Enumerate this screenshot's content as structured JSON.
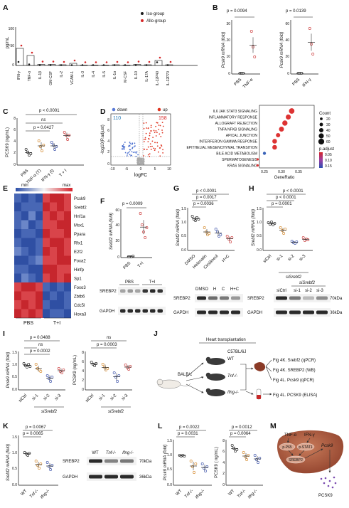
{
  "panels": {
    "A": {
      "letter": "A",
      "ylabel": "pg/mL",
      "ticks": [
        "100",
        "50",
        "0"
      ],
      "legend": [
        "Iso-group",
        "Allo-group"
      ],
      "legend_colors": [
        "#1a1a1a",
        "#d62728"
      ]
    },
    "B": {
      "letter": "B",
      "p1": "p = 0.0094",
      "p2": "p = 0.0139",
      "ylabel1": "Pcsk9 mRNA (fold)",
      "ylabel2": "Pcsk9 mRNA (fold)",
      "x1": [
        "PBS",
        "TNF-α"
      ],
      "x2": [
        "PBS",
        "IFN-γ"
      ],
      "ticks1": [
        "30",
        "20",
        "10",
        "0"
      ],
      "ticks2": [
        "60",
        "40",
        "20",
        "0"
      ]
    },
    "C": {
      "letter": "C",
      "p_top": "p < 0.0001",
      "ns": "ns",
      "p_mid": "p = 0.0427",
      "ylabel": "PCSK9 (ng/mL)",
      "ticks": [
        "8",
        "6",
        "4",
        "2",
        "0"
      ],
      "x": [
        "PBS",
        "TNF-α (T)",
        "IFN-γ (I)",
        "T + I"
      ]
    },
    "D": {
      "letter": "D",
      "legend_down": "down",
      "legend_up": "up",
      "count_down": "110",
      "count_up": "158",
      "ylabel": "-log10(P.adjust)",
      "xlabel": "logFC",
      "xticks": [
        "-10",
        "-5",
        "0",
        "5",
        "10"
      ],
      "yticks": [
        "8",
        "6",
        "4",
        "2",
        "0"
      ],
      "pathways": [
        "IL6 JAK STAT3 SIGNALING",
        "INFLAMMATORY RESPONSE",
        "ALLOGRAFT REJECTION",
        "TNFA NFKB SIGNALING",
        "APICAL JUNCTION",
        "INTERFERON GAMMA RESPONSE",
        "EPITHELIAL MESENCHYMAL TRANSITION",
        "BILE ACID METABOLISM",
        "SPERMATOGENESIS",
        "KRAS SIGNALING"
      ],
      "gene_ratio": [
        0.33,
        0.32,
        0.31,
        0.3,
        0.29,
        0.28,
        0.28,
        0.25,
        0.23,
        0.23
      ],
      "dot_count": [
        55,
        50,
        52,
        48,
        40,
        45,
        45,
        25,
        15,
        15
      ],
      "dot_color": [
        "#dd3333",
        "#dd3333",
        "#dd3333",
        "#dd3333",
        "#dd3333",
        "#dd3333",
        "#dd3333",
        "#3a63b8",
        "#dd3333",
        "#dd3333"
      ],
      "xlabel_dot": "GeneRatio",
      "xticks_dot": [
        "0.25",
        "0.30",
        "0.35"
      ],
      "count_title": "Count",
      "count_vals": [
        "20",
        "30",
        "40",
        "50",
        "60"
      ],
      "padj_title": "p.adjust",
      "padj_vals": [
        "0.05",
        "0.10",
        "0.15"
      ]
    },
    "E": {
      "letter": "E",
      "min": "min",
      "max": "max",
      "genes": [
        "Pcsk9",
        "Srebf2",
        "Hnf1a",
        "Msx1",
        "Ppara",
        "Rfx1",
        "E2f2",
        "Foxa2",
        "Hinfp",
        "Sp1",
        "Foxo3",
        "Zbtb6",
        "Cdc5l",
        "Hoxa3"
      ],
      "gene_colors": [
        "#d62728",
        "#1f77b4",
        "#111",
        "#111",
        "#111",
        "#111",
        "#111",
        "#111",
        "#111",
        "#111",
        "#111",
        "#111",
        "#111",
        "#111"
      ],
      "groups": [
        "PBS",
        "T+I"
      ]
    },
    "F": {
      "letter": "F",
      "p": "p = 0.0009",
      "ylabel": "Srebf2 mRNA (fold)",
      "ticks": [
        "60",
        "40",
        "20",
        "0"
      ],
      "x": [
        "PBS",
        "T+I"
      ],
      "blot_groups": [
        "PBS",
        "T+I"
      ],
      "blot_labels": [
        "SREBP2",
        "GAPDH"
      ]
    },
    "G": {
      "letter": "G",
      "p1": "p < 0.0001",
      "p2": "p = 0.0017",
      "p3": "p = 0.0036",
      "ylabel": "Srebf2 mRNA (fold)",
      "ticks": [
        "1.5",
        "1.0",
        "0.5",
        "0.0"
      ],
      "x": [
        "DMSO",
        "Helenalin",
        "Cirsilineol",
        "H+C"
      ],
      "blot_groups": [
        "DMSO",
        "H",
        "C",
        "H+C"
      ],
      "blot_labels": [
        "SREBP2",
        "GAPDH"
      ]
    },
    "H": {
      "letter": "H",
      "p1": "p < 0.0001",
      "p2": "p < 0.0001",
      "p3": "p = 0.0001",
      "ylabel": "Srebf2 mRNA (fold)",
      "ticks": [
        "1.5",
        "1.0",
        "0.5",
        "0.0"
      ],
      "x": [
        "siCtrl",
        "si-1",
        "si-2",
        "si-3"
      ],
      "group": "siSrebf2",
      "blot_header": "siSrebf2",
      "blot_groups": [
        "siCtrl",
        "si-1",
        "si-2",
        "si-3"
      ],
      "blot_labels": [
        "SREBP2",
        "GAPDH"
      ],
      "blot_kda": [
        "70kDa",
        "36kDa"
      ]
    },
    "I": {
      "letter": "I",
      "p_a": "p = 0.0488",
      "ns_a": "ns",
      "p_b": "p = 0.0002",
      "ylabel1": "Pcsk9 mRNA (fold)",
      "ticks1": [
        "1.5",
        "1.0",
        "0.5",
        "0.0"
      ],
      "ns_c": "ns",
      "p_d": "p = 0.0003",
      "ylabel2": "PCSK9 (ng/mL)",
      "ticks2": [
        "8",
        "6",
        "4",
        "2",
        "0"
      ],
      "x": [
        "siCtrl",
        "si-1",
        "si-2",
        "si-3"
      ],
      "group": "siSrebf2"
    },
    "J": {
      "letter": "J",
      "title": "Heart transplantation",
      "strain": "C57BL/6J",
      "donor": "BALB/c",
      "recipients": [
        "WT",
        "Tnf-/-",
        "Ifng-/-"
      ],
      "outputs": [
        "Fig 4K. Srebf2 (qPCR)",
        "Fig 4K. SREBP2 (WB)",
        "Fig 4L. Pcsk9 (qPCR)",
        "Fig 4L. PCSK9 (ELISA)"
      ]
    },
    "K": {
      "letter": "K",
      "p1": "p = 0.0067",
      "p2": "p = 0.0065",
      "ylabel": "Srebf2 mRNA (fold)",
      "ticks": [
        "1.5",
        "1.0",
        "0.5",
        "0.0"
      ],
      "x": [
        "WT",
        "Tnf-/-",
        "Ifng-/-"
      ],
      "blot_groups": [
        "WT",
        "Tnf-/-",
        "Ifng-/-"
      ],
      "blot_labels": [
        "SREBP2",
        "GAPDH"
      ],
      "blot_kda": [
        "70kDa",
        "36kDa"
      ]
    },
    "L": {
      "letter": "L",
      "p1": "p = 0.0022",
      "p2": "p = 0.0031",
      "ylabel1": "Pcsk9 mRNA (fold)",
      "ticks1": [
        "1.5",
        "1.0",
        "0.5",
        "0.0"
      ],
      "p3": "p = 0.0012",
      "p4": "p = 0.0064",
      "ylabel2": "PCSK9 ( ng/mL)",
      "ticks2": [
        "8",
        "6",
        "4",
        "2",
        "0"
      ],
      "x": [
        "WT",
        "Tnf-/-",
        "Ifng-/-"
      ]
    },
    "M": {
      "letter": "M",
      "inputs": [
        "TNF-α",
        "IFN-γ"
      ],
      "nodes": [
        "p-P65",
        "p-STAT1",
        "SREBP2",
        "Pcsk9"
      ],
      "output": "PCSK9"
    }
  }
}
